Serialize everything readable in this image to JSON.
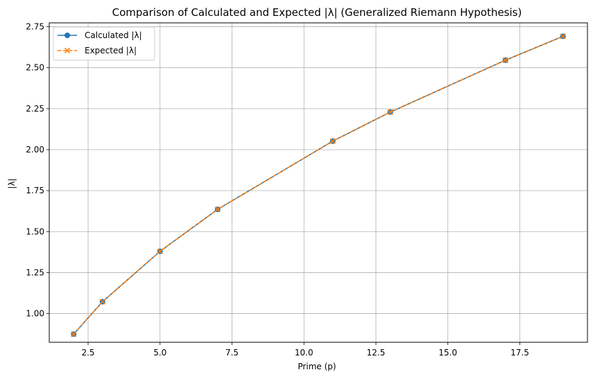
{
  "chart_data": {
    "type": "line",
    "title": "Comparison of Calculated and Expected |λ| (Generalized Riemann Hypothesis)",
    "xlabel": "Prime (p)",
    "ylabel": "|λ|",
    "xlim": [
      1.15,
      19.85
    ],
    "ylim": [
      0.8249,
      2.7735
    ],
    "xticks": [
      2.5,
      5.0,
      7.5,
      10.0,
      12.5,
      15.0,
      17.5
    ],
    "xtick_labels": [
      "2.5",
      "5.0",
      "7.5",
      "10.0",
      "12.5",
      "15.0",
      "17.5"
    ],
    "yticks": [
      1.0,
      1.25,
      1.5,
      1.75,
      2.0,
      2.25,
      2.5,
      2.75
    ],
    "ytick_labels": [
      "1.00",
      "1.25",
      "1.50",
      "1.75",
      "2.00",
      "2.25",
      "2.50",
      "2.75"
    ],
    "grid": true,
    "legend_position": "upper-left",
    "x": [
      2,
      3,
      5,
      7,
      11,
      13,
      17,
      19
    ],
    "series": [
      {
        "name": "Calculated |λ|",
        "values": [
          0.8748,
          1.0723,
          1.3799,
          1.6356,
          2.0519,
          2.2294,
          2.5456,
          2.6914
        ],
        "color": "#1f77b4",
        "line_style": "solid",
        "marker": "circle"
      },
      {
        "name": "Expected |λ|",
        "values": [
          0.8748,
          1.0723,
          1.3799,
          1.6356,
          2.0519,
          2.2294,
          2.5456,
          2.6914
        ],
        "color": "#ff7f0e",
        "line_style": "dashed",
        "marker": "x"
      }
    ]
  }
}
